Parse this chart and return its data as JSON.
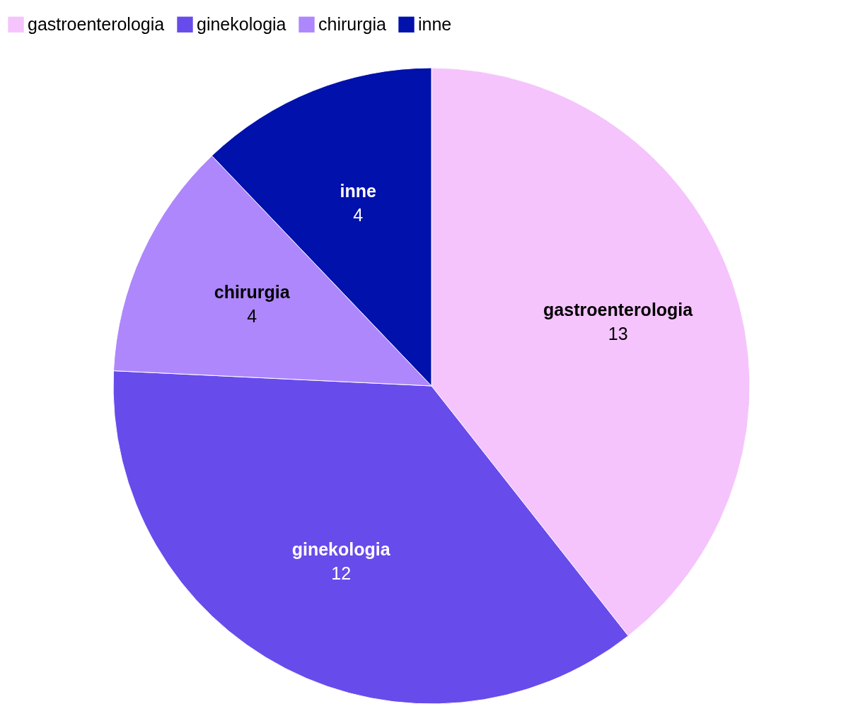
{
  "chart_data": {
    "type": "pie",
    "categories": [
      "gastroenterologia",
      "ginekologia",
      "chirurgia",
      "inne"
    ],
    "values": [
      13,
      12,
      4,
      4
    ],
    "colors": [
      "#f5c4fc",
      "#684beb",
      "#ae87fc",
      "#0011ac"
    ],
    "data_labels": true,
    "legend": "top left"
  }
}
